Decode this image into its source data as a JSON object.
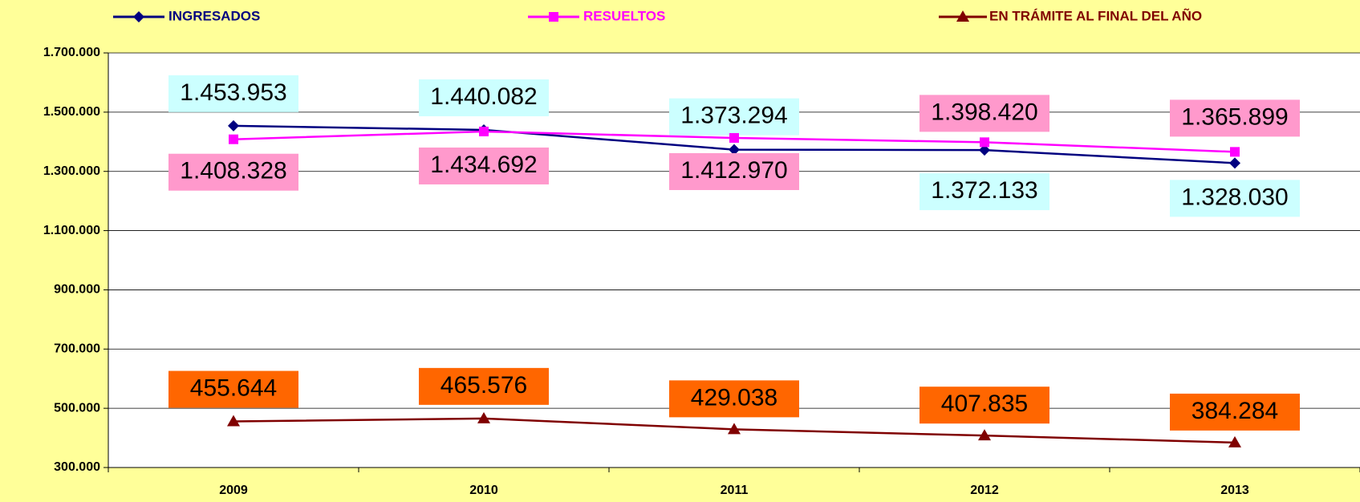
{
  "chart_data": {
    "type": "line",
    "categories": [
      "2009",
      "2010",
      "2011",
      "2012",
      "2013"
    ],
    "series": [
      {
        "name": "INGRESADOS",
        "color": "#000080",
        "marker": "diamond",
        "label_color": "#ccffff",
        "values": [
          1453953,
          1440082,
          1373294,
          1372133,
          1328030
        ],
        "value_labels": [
          "1.453.953",
          "1.440.082",
          "1.373.294",
          "1.372.133",
          "1.328.030"
        ]
      },
      {
        "name": "RESUELTOS",
        "color": "#ff00ff",
        "marker": "square",
        "label_color": "#ff99cc",
        "values": [
          1408328,
          1434692,
          1412970,
          1398420,
          1365899
        ],
        "value_labels": [
          "1.408.328",
          "1.434.692",
          "1.412.970",
          "1.398.420",
          "1.365.899"
        ]
      },
      {
        "name": "EN TRÁMITE AL FINAL DEL AÑO",
        "color": "#800000",
        "marker": "triangle",
        "label_color": "#ff6600",
        "values": [
          455644,
          465576,
          429038,
          407835,
          384284
        ],
        "value_labels": [
          "455.644",
          "465.576",
          "429.038",
          "407.835",
          "384.284"
        ]
      }
    ],
    "ylim": [
      300000,
      1700000
    ],
    "yticks": [
      {
        "value": 300000,
        "label": "300.000"
      },
      {
        "value": 500000,
        "label": "500.000"
      },
      {
        "value": 700000,
        "label": "700.000"
      },
      {
        "value": 900000,
        "label": "900.000"
      },
      {
        "value": 1100000,
        "label": "1.100.000"
      },
      {
        "value": 1300000,
        "label": "1.300.000"
      },
      {
        "value": 1500000,
        "label": "1.500.000"
      },
      {
        "value": 1700000,
        "label": "1.700.000"
      }
    ],
    "grid": true,
    "legend": "top"
  }
}
